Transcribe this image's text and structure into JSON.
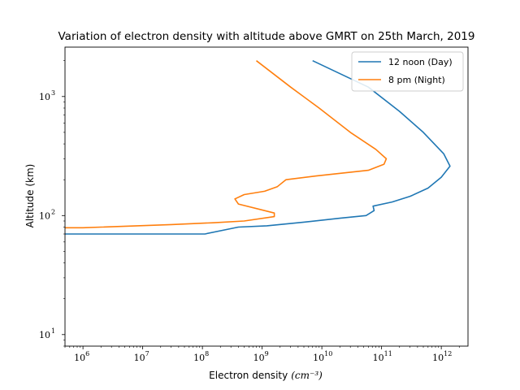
{
  "chart_data": {
    "type": "line",
    "title": "Variation of electron density with altitude above GMRT on 25th March, 2019",
    "xlabel": "Electron density",
    "xlabel_unit": "(cm⁻³)",
    "ylabel": "Altitude (km)",
    "xscale": "log",
    "yscale": "log",
    "xlim": [
      500000,
      2800000000000
    ],
    "ylim": [
      8,
      2600
    ],
    "x_ticks": [
      {
        "value": 1000000,
        "label": "10",
        "exp": "6"
      },
      {
        "value": 10000000,
        "label": "10",
        "exp": "7"
      },
      {
        "value": 100000000,
        "label": "10",
        "exp": "8"
      },
      {
        "value": 1000000000,
        "label": "10",
        "exp": "9"
      },
      {
        "value": 10000000000,
        "label": "10",
        "exp": "10"
      },
      {
        "value": 100000000000,
        "label": "10",
        "exp": "11"
      },
      {
        "value": 1000000000000,
        "label": "10",
        "exp": "12"
      }
    ],
    "y_ticks": [
      {
        "value": 10,
        "label": "10",
        "exp": "1"
      },
      {
        "value": 100,
        "label": "10",
        "exp": "2"
      },
      {
        "value": 1000,
        "label": "10",
        "exp": "3"
      }
    ],
    "legend_position": "top-right",
    "series": [
      {
        "name": "12 noon (Day)",
        "color": "#1f77b4",
        "points": [
          [
            500000,
            70
          ],
          [
            110000000,
            70
          ],
          [
            400000000,
            80
          ],
          [
            1200000000,
            82
          ],
          [
            5000000000,
            88
          ],
          [
            20000000000,
            95
          ],
          [
            55000000000,
            100
          ],
          [
            75000000000,
            110
          ],
          [
            72000000000,
            120
          ],
          [
            150000000000,
            130
          ],
          [
            300000000000,
            145
          ],
          [
            600000000000,
            170
          ],
          [
            1000000000000,
            210
          ],
          [
            1400000000000,
            260
          ],
          [
            1100000000000,
            330
          ],
          [
            500000000000,
            500
          ],
          [
            200000000000,
            750
          ],
          [
            60000000000,
            1200
          ],
          [
            7000000000,
            2000
          ]
        ]
      },
      {
        "name": "8 pm (Night)",
        "color": "#ff7f0e",
        "points": [
          [
            500000,
            79
          ],
          [
            1000000,
            79
          ],
          [
            30000000,
            84
          ],
          [
            150000000,
            87
          ],
          [
            500000000,
            90
          ],
          [
            1600000000,
            98
          ],
          [
            1600000000,
            105
          ],
          [
            400000000,
            125
          ],
          [
            350000000,
            138
          ],
          [
            500000000,
            150
          ],
          [
            1100000000,
            160
          ],
          [
            1800000000,
            175
          ],
          [
            2500000000,
            200
          ],
          [
            8000000000,
            215
          ],
          [
            60000000000,
            240
          ],
          [
            110000000000,
            270
          ],
          [
            120000000000,
            300
          ],
          [
            80000000000,
            360
          ],
          [
            30000000000,
            500
          ],
          [
            9000000000,
            800
          ],
          [
            3000000000,
            1200
          ],
          [
            800000000,
            2000
          ]
        ]
      }
    ]
  }
}
